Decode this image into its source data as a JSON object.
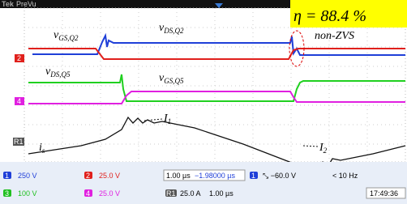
{
  "header": {
    "brand": "Tek",
    "mode": "PreVu"
  },
  "efficiency": "η = 88.4 %",
  "labels": {
    "vgs_q2": {
      "main": "v",
      "sub": "GS,Q2"
    },
    "vds_q2": {
      "main": "v",
      "sub": "DS,Q2"
    },
    "non_zvs": "non-ZVS",
    "vds_q5": {
      "main": "v",
      "sub": "DS,Q5"
    },
    "vgs_q5": {
      "main": "v",
      "sub": "GS,Q5"
    },
    "is": {
      "main": "i",
      "sub": "s"
    },
    "i1": {
      "main": "I",
      "sub": "1"
    },
    "i2": {
      "main": "I",
      "sub": "2"
    }
  },
  "channel_markers": [
    "2",
    "4",
    "R1"
  ],
  "status": {
    "ch1": {
      "num": "1",
      "scale": "250 V"
    },
    "ch2": {
      "num": "2",
      "scale": "25.0 V"
    },
    "ch3": {
      "num": "3",
      "scale": "100 V"
    },
    "ch4": {
      "num": "4",
      "scale": "25.0 V"
    },
    "timebase": "1.00 µs",
    "delay": "−1.98000 µs",
    "trigger": {
      "num": "1",
      "level": "⤡ −60.0 V"
    },
    "freq": "< 10 Hz",
    "ref": {
      "num": "R1",
      "scale": "25.0 A",
      "time": "1.00 µs"
    },
    "clock": "17:49:36"
  }
}
